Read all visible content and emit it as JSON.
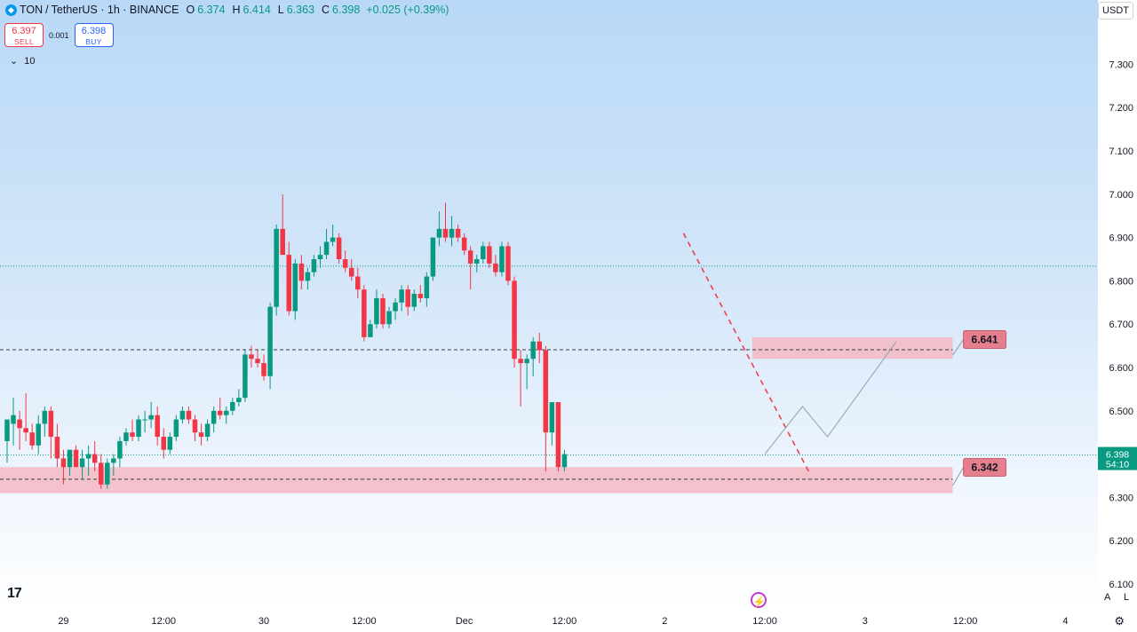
{
  "header": {
    "symbol": "TON",
    "separator": "/",
    "quote": "TetherUS · 1h · BINANCE",
    "o_label": "O",
    "o_value": "6.374",
    "h_label": "H",
    "h_value": "6.414",
    "l_label": "L",
    "l_value": "6.363",
    "c_label": "C",
    "c_value": "6.398",
    "change": "+0.025 (+0.39%)"
  },
  "trade": {
    "sell_price": "6.397",
    "sell_label": "SELL",
    "spread": "0.001",
    "buy_price": "6.398",
    "buy_label": "BUY"
  },
  "indicator_toggle": "10",
  "currency": "USDT",
  "axis_buttons": {
    "auto": "A",
    "log": "L"
  },
  "colors": {
    "up": "#089981",
    "down": "#f23645",
    "zone": "#f4b9c3",
    "label_bg": "#e57f8e"
  },
  "chart_data": {
    "type": "candlestick",
    "symbol": "TON / TetherUS",
    "interval": "1h",
    "exchange": "BINANCE",
    "ylim": [
      6.1,
      7.4
    ],
    "y_ticks": [
      "6.100",
      "6.200",
      "6.300",
      "6.400",
      "6.500",
      "6.600",
      "6.700",
      "6.800",
      "6.900",
      "7.000",
      "7.100",
      "7.200",
      "7.300"
    ],
    "x_ticks": [
      "29",
      "12:00",
      "30",
      "12:00",
      "Dec",
      "12:00",
      "2",
      "12:00",
      "3",
      "12:00",
      "4"
    ],
    "x_tick_index": [
      9,
      25,
      41,
      57,
      73,
      89,
      105,
      121,
      137,
      153,
      169
    ],
    "candles": [
      [
        6.43,
        6.47,
        6.38,
        6.48
      ],
      [
        6.47,
        6.53,
        6.42,
        6.49
      ],
      [
        6.48,
        6.5,
        6.41,
        6.46
      ],
      [
        6.46,
        6.54,
        6.43,
        6.45
      ],
      [
        6.45,
        6.47,
        6.41,
        6.42
      ],
      [
        6.42,
        6.49,
        6.4,
        6.47
      ],
      [
        6.47,
        6.51,
        6.44,
        6.5
      ],
      [
        6.5,
        6.51,
        6.39,
        6.44
      ],
      [
        6.44,
        6.47,
        6.37,
        6.39
      ],
      [
        6.39,
        6.41,
        6.33,
        6.37
      ],
      [
        6.37,
        6.41,
        6.35,
        6.41
      ],
      [
        6.41,
        6.42,
        6.37,
        6.37
      ],
      [
        6.37,
        6.41,
        6.34,
        6.39
      ],
      [
        6.39,
        6.42,
        6.35,
        6.4
      ],
      [
        6.4,
        6.43,
        6.36,
        6.38
      ],
      [
        6.38,
        6.4,
        6.32,
        6.33
      ],
      [
        6.33,
        6.39,
        6.32,
        6.38
      ],
      [
        6.38,
        6.4,
        6.35,
        6.39
      ],
      [
        6.39,
        6.44,
        6.37,
        6.43
      ],
      [
        6.43,
        6.46,
        6.42,
        6.45
      ],
      [
        6.45,
        6.48,
        6.43,
        6.44
      ],
      [
        6.44,
        6.49,
        6.43,
        6.48
      ],
      [
        6.48,
        6.5,
        6.45,
        6.48
      ],
      [
        6.48,
        6.52,
        6.46,
        6.49
      ],
      [
        6.49,
        6.51,
        6.42,
        6.44
      ],
      [
        6.44,
        6.46,
        6.39,
        6.41
      ],
      [
        6.41,
        6.45,
        6.4,
        6.44
      ],
      [
        6.44,
        6.49,
        6.43,
        6.48
      ],
      [
        6.48,
        6.51,
        6.47,
        6.5
      ],
      [
        6.5,
        6.51,
        6.47,
        6.48
      ],
      [
        6.48,
        6.49,
        6.43,
        6.45
      ],
      [
        6.45,
        6.47,
        6.42,
        6.44
      ],
      [
        6.44,
        6.48,
        6.43,
        6.47
      ],
      [
        6.47,
        6.51,
        6.45,
        6.5
      ],
      [
        6.5,
        6.53,
        6.48,
        6.49
      ],
      [
        6.49,
        6.51,
        6.47,
        6.5
      ],
      [
        6.5,
        6.53,
        6.49,
        6.52
      ],
      [
        6.52,
        6.55,
        6.51,
        6.53
      ],
      [
        6.53,
        6.64,
        6.52,
        6.63
      ],
      [
        6.63,
        6.65,
        6.6,
        6.62
      ],
      [
        6.62,
        6.64,
        6.6,
        6.61
      ],
      [
        6.61,
        6.63,
        6.57,
        6.58
      ],
      [
        6.58,
        6.75,
        6.55,
        6.74
      ],
      [
        6.74,
        6.93,
        6.72,
        6.92
      ],
      [
        6.92,
        7.0,
        6.86,
        6.86
      ],
      [
        6.86,
        6.89,
        6.72,
        6.73
      ],
      [
        6.73,
        6.85,
        6.71,
        6.84
      ],
      [
        6.84,
        6.86,
        6.78,
        6.8
      ],
      [
        6.8,
        6.83,
        6.78,
        6.82
      ],
      [
        6.82,
        6.86,
        6.81,
        6.85
      ],
      [
        6.85,
        6.88,
        6.83,
        6.86
      ],
      [
        6.86,
        6.92,
        6.85,
        6.89
      ],
      [
        6.89,
        6.93,
        6.88,
        6.9
      ],
      [
        6.9,
        6.91,
        6.84,
        6.85
      ],
      [
        6.85,
        6.87,
        6.82,
        6.83
      ],
      [
        6.83,
        6.85,
        6.8,
        6.81
      ],
      [
        6.81,
        6.83,
        6.76,
        6.78
      ],
      [
        6.78,
        6.79,
        6.66,
        6.67
      ],
      [
        6.67,
        6.71,
        6.67,
        6.7
      ],
      [
        6.7,
        6.78,
        6.69,
        6.76
      ],
      [
        6.76,
        6.77,
        6.69,
        6.7
      ],
      [
        6.7,
        6.74,
        6.69,
        6.73
      ],
      [
        6.73,
        6.76,
        6.71,
        6.75
      ],
      [
        6.75,
        6.79,
        6.73,
        6.78
      ],
      [
        6.78,
        6.79,
        6.72,
        6.74
      ],
      [
        6.74,
        6.78,
        6.73,
        6.77
      ],
      [
        6.77,
        6.79,
        6.75,
        6.76
      ],
      [
        6.76,
        6.82,
        6.74,
        6.81
      ],
      [
        6.81,
        6.9,
        6.8,
        6.9
      ],
      [
        6.9,
        6.96,
        6.88,
        6.92
      ],
      [
        6.92,
        6.98,
        6.89,
        6.9
      ],
      [
        6.9,
        6.95,
        6.88,
        6.92
      ],
      [
        6.92,
        6.93,
        6.89,
        6.9
      ],
      [
        6.9,
        6.91,
        6.86,
        6.87
      ],
      [
        6.87,
        6.88,
        6.78,
        6.84
      ],
      [
        6.84,
        6.86,
        6.82,
        6.85
      ],
      [
        6.85,
        6.89,
        6.84,
        6.88
      ],
      [
        6.88,
        6.89,
        6.83,
        6.84
      ],
      [
        6.84,
        6.86,
        6.81,
        6.82
      ],
      [
        6.82,
        6.89,
        6.81,
        6.88
      ],
      [
        6.88,
        6.89,
        6.79,
        6.8
      ],
      [
        6.8,
        6.81,
        6.6,
        6.62
      ],
      [
        6.62,
        6.64,
        6.51,
        6.61
      ],
      [
        6.61,
        6.63,
        6.55,
        6.62
      ],
      [
        6.62,
        6.67,
        6.58,
        6.66
      ],
      [
        6.66,
        6.68,
        6.61,
        6.64
      ],
      [
        6.64,
        6.65,
        6.36,
        6.45
      ],
      [
        6.45,
        6.52,
        6.42,
        6.52
      ],
      [
        6.52,
        6.52,
        6.36,
        6.37
      ],
      [
        6.37,
        6.41,
        6.36,
        6.4
      ]
    ],
    "horizontal_lines": [
      {
        "price": 6.834,
        "style": "dotted",
        "color": "#089981"
      },
      {
        "price": 6.398,
        "style": "dotted",
        "color": "#089981"
      },
      {
        "price": 6.641,
        "style": "dashed",
        "color": "#3b3b3b"
      },
      {
        "price": 6.342,
        "style": "dashed",
        "color": "#3b3b3b"
      }
    ],
    "zones": [
      {
        "from": 6.62,
        "to": 6.67,
        "x_start_index": 119,
        "x_end_index": 151,
        "label": "6.641"
      },
      {
        "from": 6.31,
        "to": 6.37,
        "x_start_index": 0,
        "x_end_index": 151,
        "label": "6.342"
      }
    ],
    "trendline": {
      "from_index": 108,
      "from_price": 6.91,
      "to_index": 128,
      "to_price": 6.36,
      "style": "dashed",
      "color": "#f23645"
    },
    "projection_path": [
      [
        121,
        6.4
      ],
      [
        127,
        6.51
      ],
      [
        131,
        6.44
      ],
      [
        142,
        6.66
      ]
    ],
    "current_price": {
      "value": "6.398",
      "countdown": "54:10"
    },
    "price_labels": [
      "6.641",
      "6.342"
    ]
  }
}
